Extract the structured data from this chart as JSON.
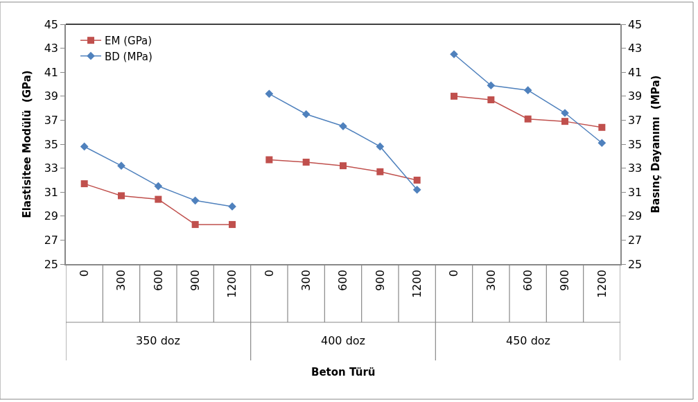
{
  "chart_data": {
    "type": "line",
    "categories": [
      "0",
      "300",
      "600",
      "900",
      "1200",
      "0",
      "300",
      "600",
      "900",
      "1200",
      "0",
      "300",
      "600",
      "900",
      "1200"
    ],
    "ylabel": "Elastisitee Modülü  (GPa)",
    "y2label": "Basınç Dayanımı  (MPa)",
    "annotations": [
      "350 doz",
      "400 doz",
      "450 doz",
      "Beton Türü"
    ],
    "series": [
      {
        "name": "EM (GPa)",
        "color": "#c0504d",
        "marker": "square",
        "values": [
          31.7,
          30.7,
          30.4,
          28.3,
          28.3,
          33.7,
          33.5,
          33.2,
          32.7,
          32.0,
          39.0,
          38.7,
          37.1,
          36.9,
          36.4
        ]
      },
      {
        "name": "BD (MPa)",
        "color": "#4f81bd",
        "marker": "diamond",
        "axis": "y2",
        "values": [
          34.8,
          33.2,
          31.5,
          30.3,
          29.8,
          39.2,
          37.5,
          36.5,
          34.8,
          31.2,
          42.5,
          39.9,
          39.5,
          37.6,
          35.1
        ]
      }
    ],
    "ylim": [
      25,
      45
    ],
    "yticks": [
      25,
      27,
      29,
      31,
      33,
      35,
      37,
      39,
      41,
      43,
      45
    ],
    "y2lim": [
      25,
      45
    ],
    "y2ticks": [
      25,
      27,
      29,
      31,
      33,
      35,
      37,
      39,
      41,
      43,
      45
    ],
    "legend": "top left"
  }
}
